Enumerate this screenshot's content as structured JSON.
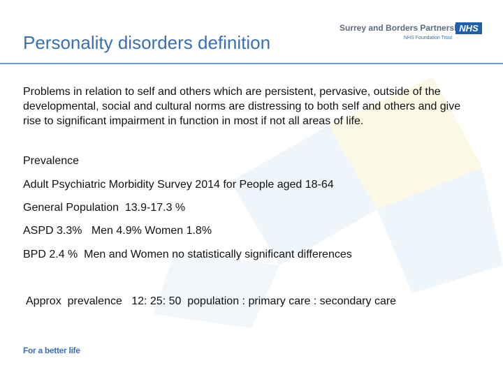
{
  "header": {
    "title": "Personality disorders definition",
    "logo": {
      "org_name": "Surrey and Borders Partnership",
      "badge": "NHS",
      "subtitle": "NHS Foundation Trust"
    }
  },
  "content": {
    "definition": "Problems in relation to self and others which are persistent, pervasive, outside of the developmental, social and cultural norms are distressing to both self and others and give rise to significant impairment in function in most if not all areas of life.",
    "prevalence_heading": "Prevalence",
    "survey": "Adult Psychiatric Morbidity Survey 2014 for People aged 18-64",
    "general_population": "General Population  13.9-17.3 %",
    "aspd": "ASPD 3.3%   Men 4.9% Women 1.8%",
    "bpd": "BPD 2.4 %  Men and Women no statistically significant differences",
    "approx": "Approx  prevalence   12: 25: 50  population : primary care : secondary care"
  },
  "footer": {
    "tagline": "For a better life"
  },
  "colors": {
    "title": "#3a6fb5",
    "rule": "#6aa0cf",
    "nhs_blue": "#1f5fad",
    "background_tint": "#eef5fb",
    "background_tint_yellow": "#fbf8e6"
  }
}
